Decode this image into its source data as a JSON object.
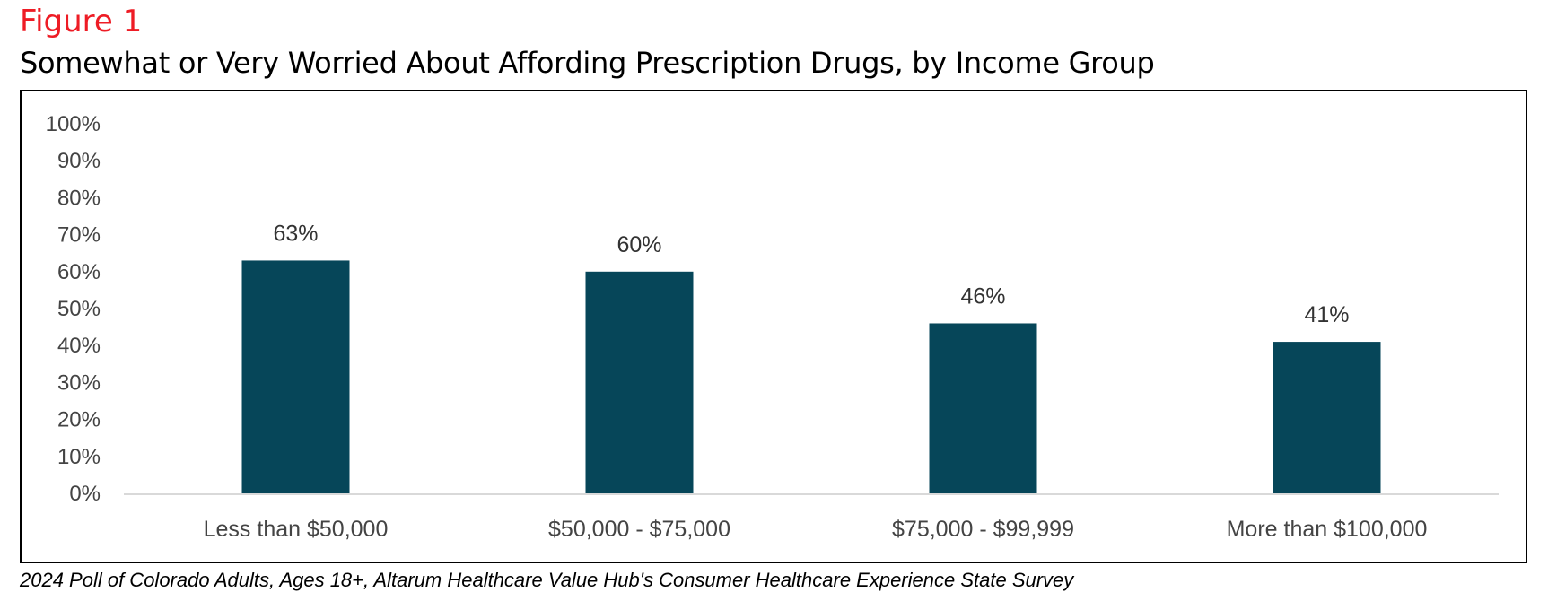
{
  "figure_label": "Figure 1",
  "footnote": "2024 Poll of Colorado Adults, Ages 18+, Altarum Healthcare Value Hub's Consumer Healthcare Experience State Survey",
  "colors": {
    "bar": "#064659",
    "label_red": "#ee1c25",
    "axis": "#d9d9d9"
  },
  "chart_data": {
    "type": "bar",
    "title": "Somewhat or Very Worried About Affording Prescription Drugs, by Income Group",
    "categories": [
      "Less than $50,000",
      "$50,000 - $75,000",
      "$75,000 - $99,999",
      "More than $100,000"
    ],
    "values": [
      63,
      60,
      46,
      41
    ],
    "data_labels": [
      "63%",
      "60%",
      "46%",
      "41%"
    ],
    "ylim": [
      0,
      100
    ],
    "yticks": [
      "0%",
      "10%",
      "20%",
      "30%",
      "40%",
      "50%",
      "60%",
      "70%",
      "80%",
      "90%",
      "100%"
    ],
    "xlabel": "",
    "ylabel": "",
    "grid": false,
    "legend": "none"
  }
}
